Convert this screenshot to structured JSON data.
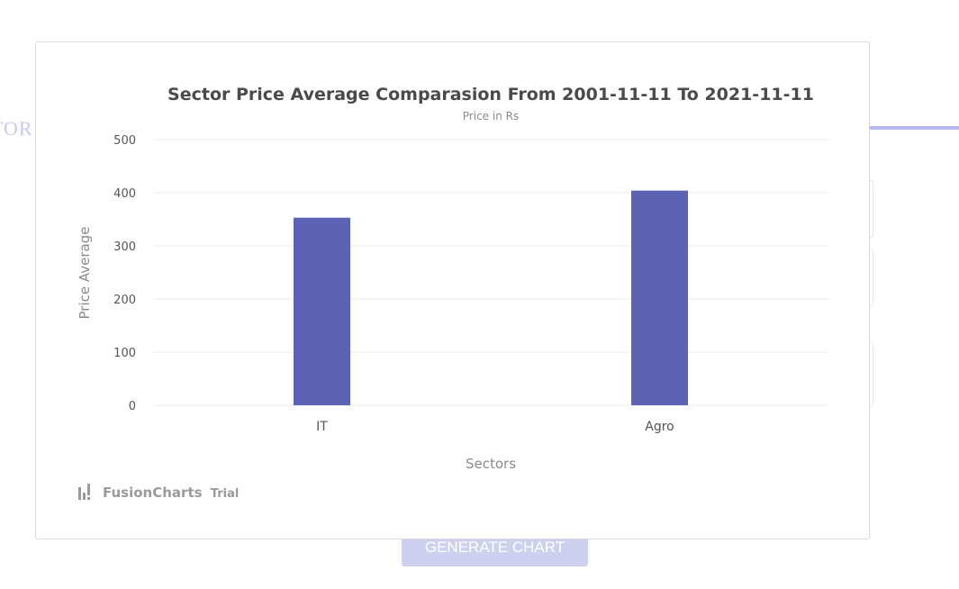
{
  "background": {
    "heading_fragment": "TOR",
    "generate_button_label": "GENERATE CHART"
  },
  "colors": {
    "bar": "#5c62b4",
    "gridline": "#ececec"
  },
  "watermark": {
    "brand": "FusionCharts",
    "suffix": "Trial"
  },
  "chart_data": {
    "type": "bar",
    "title": "Sector Price Average Comparasion From 2001-11-11 To 2021-11-11",
    "subtitle": "Price in Rs",
    "xlabel": "Sectors",
    "ylabel": "Price Average",
    "categories": [
      "IT",
      "Agro"
    ],
    "values": [
      353,
      404
    ],
    "ylim": [
      0,
      500
    ],
    "yticks": [
      0,
      100,
      200,
      300,
      400,
      500
    ],
    "grid": true
  }
}
